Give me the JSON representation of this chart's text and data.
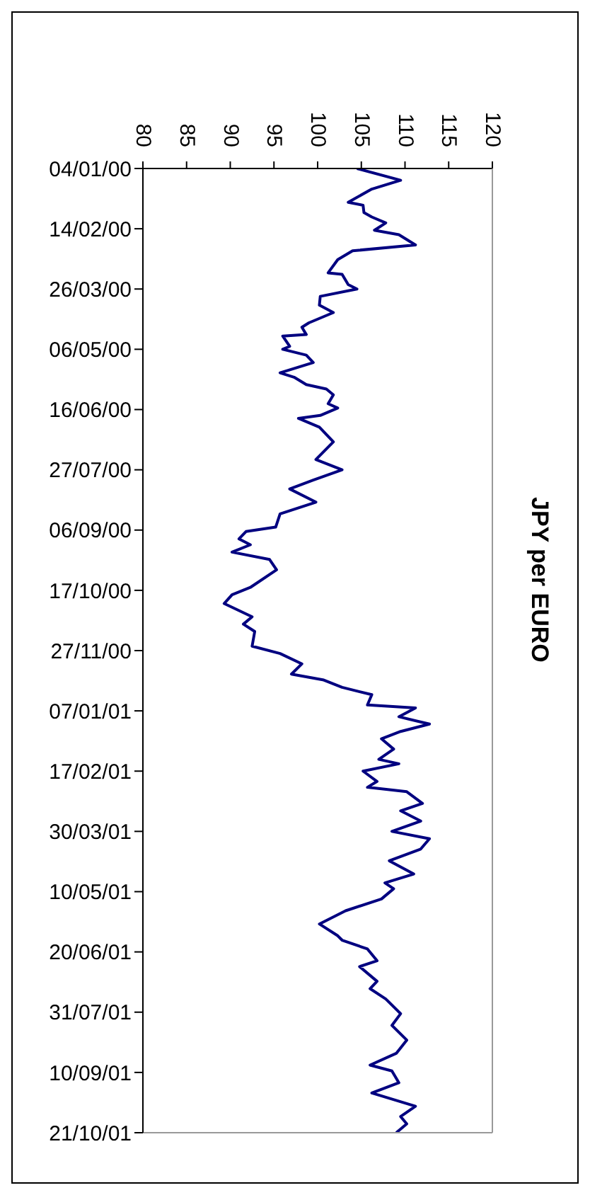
{
  "chart_data": {
    "type": "line",
    "title": "JPY per EURO",
    "x": [
      "2000-01-04",
      "2000-01-12",
      "2000-01-18",
      "2000-01-27",
      "2000-01-29",
      "2000-02-03",
      "2000-02-06",
      "2000-02-10",
      "2000-02-15",
      "2000-02-18",
      "2000-02-25",
      "2000-02-29",
      "2000-03-06",
      "2000-03-15",
      "2000-03-16",
      "2000-03-23",
      "2000-03-26",
      "2000-03-31",
      "2000-04-06",
      "2000-04-11",
      "2000-04-18",
      "2000-04-21",
      "2000-04-26",
      "2000-04-27",
      "2000-05-04",
      "2000-05-06",
      "2000-05-10",
      "2000-05-15",
      "2000-05-22",
      "2000-05-25",
      "2000-05-30",
      "2000-06-02",
      "2000-06-06",
      "2000-06-12",
      "2000-06-15",
      "2000-06-20",
      "2000-06-22",
      "2000-06-28",
      "2000-07-08",
      "2000-07-20",
      "2000-07-27",
      "2000-08-03",
      "2000-08-09",
      "2000-08-18",
      "2000-08-26",
      "2000-09-04",
      "2000-09-07",
      "2000-09-12",
      "2000-09-16",
      "2000-09-21",
      "2000-09-26",
      "2000-10-03",
      "2000-10-15",
      "2000-10-20",
      "2000-10-26",
      "2000-11-04",
      "2000-11-09",
      "2000-11-14",
      "2000-11-24",
      "2000-11-29",
      "2000-12-06",
      "2000-12-13",
      "2000-12-17",
      "2000-12-22",
      "2000-12-27",
      "2001-01-03",
      "2001-01-05",
      "2001-01-11",
      "2001-01-16",
      "2001-01-21",
      "2001-01-26",
      "2001-02-02",
      "2001-02-09",
      "2001-02-12",
      "2001-02-17",
      "2001-02-24",
      "2001-02-28",
      "2001-03-03",
      "2001-03-11",
      "2001-03-16",
      "2001-03-23",
      "2001-03-30",
      "2001-04-04",
      "2001-04-11",
      "2001-04-19",
      "2001-04-28",
      "2001-05-04",
      "2001-05-08",
      "2001-05-15",
      "2001-05-23",
      "2001-06-01",
      "2001-06-09",
      "2001-06-12",
      "2001-06-18",
      "2001-06-26",
      "2001-06-30",
      "2001-07-10",
      "2001-07-15",
      "2001-07-22",
      "2001-08-01",
      "2001-08-09",
      "2001-08-19",
      "2001-08-28",
      "2001-09-05",
      "2001-09-09",
      "2001-09-17",
      "2001-09-24",
      "2001-10-03",
      "2001-10-10",
      "2001-10-15",
      "2001-10-21"
    ],
    "series": [
      {
        "color": "#000080",
        "values": [
          104.5,
          109.5,
          106.2,
          103.5,
          105.2,
          105.3,
          106.2,
          107.8,
          106.5,
          109.3,
          111.2,
          104,
          102.3,
          101.2,
          102.8,
          103.5,
          104.5,
          100.3,
          100.2,
          101.8,
          99,
          98.2,
          98.7,
          96,
          96.8,
          96,
          98.7,
          99.5,
          95.7,
          97.3,
          98.7,
          101,
          101.8,
          101.2,
          102.3,
          100.3,
          97.8,
          100.2,
          101.8,
          99.8,
          102.8,
          99.5,
          96.8,
          99.8,
          95.7,
          95.2,
          91.8,
          91,
          92.3,
          90.2,
          94.5,
          95.3,
          92.3,
          90.2,
          89.3,
          92.5,
          91.5,
          92.8,
          92.5,
          95.7,
          98.2,
          97,
          100.7,
          102.8,
          106.2,
          105.7,
          111.2,
          109.3,
          112.8,
          109.5,
          107.3,
          108.7,
          107,
          109.3,
          105.2,
          106.8,
          105.7,
          110.2,
          112,
          109.5,
          111.8,
          108.5,
          112.8,
          111.8,
          108.2,
          111,
          107.7,
          108.7,
          107.3,
          103.2,
          100.2,
          102.3,
          102.8,
          105.7,
          106.8,
          104.8,
          106.8,
          106,
          107.8,
          109.5,
          108.5,
          110.2,
          109,
          106,
          108.5,
          109.3,
          106.2,
          111.2,
          109.5,
          110.2,
          109
        ]
      }
    ],
    "orientation": "horizontal",
    "ylim": [
      "2001-10-21",
      "2000-01-04"
    ],
    "yticks": [
      {
        "value": "2000-01-04",
        "label": "04/01/00"
      },
      {
        "value": "2000-02-14",
        "label": "14/02/00"
      },
      {
        "value": "2000-03-26",
        "label": "26/03/00"
      },
      {
        "value": "2000-05-06",
        "label": "06/05/00"
      },
      {
        "value": "2000-06-16",
        "label": "16/06/00"
      },
      {
        "value": "2000-07-27",
        "label": "27/07/00"
      },
      {
        "value": "2000-09-06",
        "label": "06/09/00"
      },
      {
        "value": "2000-10-17",
        "label": "17/10/00"
      },
      {
        "value": "2000-11-27",
        "label": "27/11/00"
      },
      {
        "value": "2001-01-07",
        "label": "07/01/01"
      },
      {
        "value": "2001-02-17",
        "label": "17/02/01"
      },
      {
        "value": "2001-03-30",
        "label": "30/03/01"
      },
      {
        "value": "2001-05-10",
        "label": "10/05/01"
      },
      {
        "value": "2001-06-20",
        "label": "20/06/01"
      },
      {
        "value": "2001-07-31",
        "label": "31/07/01"
      },
      {
        "value": "2001-09-10",
        "label": "10/09/01"
      },
      {
        "value": "2001-10-21",
        "label": "21/10/01"
      }
    ],
    "xlim": [
      80,
      120
    ],
    "xticks": [
      80,
      85,
      90,
      95,
      100,
      105,
      110,
      115,
      120
    ],
    "grid": false,
    "legend": false,
    "marker": "none",
    "line_style": "solid"
  }
}
